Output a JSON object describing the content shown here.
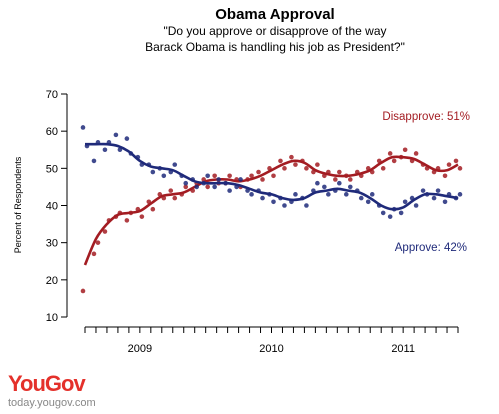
{
  "chart_data": {
    "type": "scatter",
    "title": "Obama Approval",
    "subtitle_lines": [
      "\"Do you approve or disapprove of the way",
      "Barack Obama is handling his job as President?\""
    ],
    "ylabel": "Percent of Respondents",
    "xlabel": "",
    "ylim": [
      10,
      70
    ],
    "yticks": [
      10,
      20,
      30,
      40,
      50,
      60,
      70
    ],
    "x_start": "2009-02",
    "x_end": "2011-12",
    "year_labels": [
      {
        "label": "2009",
        "center": "2009-07"
      },
      {
        "label": "2010",
        "center": "2010-07"
      },
      {
        "label": "2011",
        "center": "2011-07"
      }
    ],
    "grid": false,
    "series": [
      {
        "name": "Disapprove: 51%",
        "color": "#a31c22",
        "trend": [
          [
            "2009-02",
            24
          ],
          [
            "2009-03",
            31
          ],
          [
            "2009-04",
            35
          ],
          [
            "2009-05",
            37.5
          ],
          [
            "2009-06",
            38
          ],
          [
            "2009-07",
            38.5
          ],
          [
            "2009-08",
            40.5
          ],
          [
            "2009-09",
            42.5
          ],
          [
            "2009-10",
            43
          ],
          [
            "2009-11",
            43.5
          ],
          [
            "2009-12",
            45
          ],
          [
            "2010-01",
            46.5
          ],
          [
            "2010-02",
            47
          ],
          [
            "2010-03",
            47
          ],
          [
            "2010-04",
            46.5
          ],
          [
            "2010-05",
            47
          ],
          [
            "2010-06",
            48
          ],
          [
            "2010-07",
            49.5
          ],
          [
            "2010-08",
            51
          ],
          [
            "2010-09",
            52
          ],
          [
            "2010-10",
            51.5
          ],
          [
            "2010-11",
            49.5
          ],
          [
            "2010-12",
            48.5
          ],
          [
            "2011-01",
            48
          ],
          [
            "2011-02",
            48
          ],
          [
            "2011-03",
            48.5
          ],
          [
            "2011-04",
            49.5
          ],
          [
            "2011-05",
            51.5
          ],
          [
            "2011-06",
            53
          ],
          [
            "2011-07",
            53
          ],
          [
            "2011-08",
            52.5
          ],
          [
            "2011-09",
            51
          ],
          [
            "2011-10",
            49.5
          ],
          [
            "2011-11",
            49.5
          ],
          [
            "2011-12",
            51
          ]
        ],
        "points": [
          [
            "2009-02",
            17
          ],
          [
            "2009-03",
            27
          ],
          [
            "2009-03",
            30
          ],
          [
            "2009-04",
            33
          ],
          [
            "2009-04",
            36
          ],
          [
            "2009-05",
            37
          ],
          [
            "2009-05",
            38
          ],
          [
            "2009-06",
            36
          ],
          [
            "2009-06",
            38
          ],
          [
            "2009-07",
            39
          ],
          [
            "2009-07",
            37
          ],
          [
            "2009-08",
            41
          ],
          [
            "2009-08",
            39
          ],
          [
            "2009-09",
            43
          ],
          [
            "2009-09",
            42
          ],
          [
            "2009-10",
            44
          ],
          [
            "2009-10",
            42
          ],
          [
            "2009-11",
            43
          ],
          [
            "2009-11",
            45
          ],
          [
            "2009-12",
            44
          ],
          [
            "2009-12",
            46
          ],
          [
            "2010-01",
            47
          ],
          [
            "2010-01",
            45
          ],
          [
            "2010-02",
            48
          ],
          [
            "2010-02",
            46
          ],
          [
            "2010-03",
            46
          ],
          [
            "2010-03",
            48
          ],
          [
            "2010-04",
            47
          ],
          [
            "2010-04",
            45
          ],
          [
            "2010-05",
            47
          ],
          [
            "2010-05",
            48
          ],
          [
            "2010-06",
            49
          ],
          [
            "2010-06",
            47
          ],
          [
            "2010-07",
            50
          ],
          [
            "2010-07",
            48
          ],
          [
            "2010-08",
            52
          ],
          [
            "2010-08",
            50
          ],
          [
            "2010-09",
            53
          ],
          [
            "2010-09",
            51
          ],
          [
            "2010-10",
            52
          ],
          [
            "2010-10",
            50
          ],
          [
            "2010-11",
            49
          ],
          [
            "2010-11",
            51
          ],
          [
            "2010-12",
            48
          ],
          [
            "2010-12",
            49
          ],
          [
            "2011-01",
            47
          ],
          [
            "2011-01",
            49
          ],
          [
            "2011-02",
            48
          ],
          [
            "2011-02",
            47
          ],
          [
            "2011-03",
            49
          ],
          [
            "2011-03",
            48
          ],
          [
            "2011-04",
            50
          ],
          [
            "2011-04",
            49
          ],
          [
            "2011-05",
            52
          ],
          [
            "2011-05",
            50
          ],
          [
            "2011-06",
            54
          ],
          [
            "2011-06",
            52
          ],
          [
            "2011-07",
            53
          ],
          [
            "2011-07",
            55
          ],
          [
            "2011-08",
            52
          ],
          [
            "2011-08",
            54
          ],
          [
            "2011-09",
            51
          ],
          [
            "2011-09",
            50
          ],
          [
            "2011-10",
            49
          ],
          [
            "2011-10",
            50
          ],
          [
            "2011-11",
            48
          ],
          [
            "2011-11",
            51
          ],
          [
            "2011-12",
            52
          ],
          [
            "2011-12",
            50
          ]
        ]
      },
      {
        "name": "Approve: 42%",
        "color": "#1f2a7a",
        "trend": [
          [
            "2009-02",
            56.5
          ],
          [
            "2009-03",
            56.5
          ],
          [
            "2009-04",
            56.5
          ],
          [
            "2009-05",
            56
          ],
          [
            "2009-06",
            54.5
          ],
          [
            "2009-07",
            52
          ],
          [
            "2009-08",
            50.5
          ],
          [
            "2009-09",
            50
          ],
          [
            "2009-10",
            49.5
          ],
          [
            "2009-11",
            48
          ],
          [
            "2009-12",
            46.5
          ],
          [
            "2010-01",
            46
          ],
          [
            "2010-02",
            46
          ],
          [
            "2010-03",
            46
          ],
          [
            "2010-04",
            45.5
          ],
          [
            "2010-05",
            44.5
          ],
          [
            "2010-06",
            43.5
          ],
          [
            "2010-07",
            43
          ],
          [
            "2010-08",
            42
          ],
          [
            "2010-09",
            41.5
          ],
          [
            "2010-10",
            42
          ],
          [
            "2010-11",
            43.5
          ],
          [
            "2010-12",
            44
          ],
          [
            "2011-01",
            44.5
          ],
          [
            "2011-02",
            44
          ],
          [
            "2011-03",
            43.5
          ],
          [
            "2011-04",
            42
          ],
          [
            "2011-05",
            40
          ],
          [
            "2011-06",
            39
          ],
          [
            "2011-07",
            39.5
          ],
          [
            "2011-08",
            41.5
          ],
          [
            "2011-09",
            43
          ],
          [
            "2011-10",
            43
          ],
          [
            "2011-11",
            42.5
          ],
          [
            "2011-12",
            42
          ]
        ],
        "points": [
          [
            "2009-02",
            61
          ],
          [
            "2009-02",
            56
          ],
          [
            "2009-03",
            52
          ],
          [
            "2009-03",
            57
          ],
          [
            "2009-04",
            55
          ],
          [
            "2009-04",
            57
          ],
          [
            "2009-05",
            59
          ],
          [
            "2009-05",
            55
          ],
          [
            "2009-06",
            58
          ],
          [
            "2009-06",
            54
          ],
          [
            "2009-07",
            53
          ],
          [
            "2009-07",
            51
          ],
          [
            "2009-08",
            51
          ],
          [
            "2009-08",
            49
          ],
          [
            "2009-09",
            50
          ],
          [
            "2009-09",
            48
          ],
          [
            "2009-10",
            49
          ],
          [
            "2009-10",
            51
          ],
          [
            "2009-11",
            48
          ],
          [
            "2009-11",
            46
          ],
          [
            "2009-12",
            47
          ],
          [
            "2009-12",
            45
          ],
          [
            "2010-01",
            46
          ],
          [
            "2010-01",
            48
          ],
          [
            "2010-02",
            45
          ],
          [
            "2010-02",
            47
          ],
          [
            "2010-03",
            46
          ],
          [
            "2010-03",
            44
          ],
          [
            "2010-04",
            45
          ],
          [
            "2010-04",
            47
          ],
          [
            "2010-05",
            44
          ],
          [
            "2010-05",
            43
          ],
          [
            "2010-06",
            44
          ],
          [
            "2010-06",
            42
          ],
          [
            "2010-07",
            43
          ],
          [
            "2010-07",
            41
          ],
          [
            "2010-08",
            42
          ],
          [
            "2010-08",
            40
          ],
          [
            "2010-09",
            41
          ],
          [
            "2010-09",
            43
          ],
          [
            "2010-10",
            42
          ],
          [
            "2010-10",
            40
          ],
          [
            "2010-11",
            44
          ],
          [
            "2010-11",
            46
          ],
          [
            "2010-12",
            45
          ],
          [
            "2010-12",
            43
          ],
          [
            "2011-01",
            44
          ],
          [
            "2011-01",
            46
          ],
          [
            "2011-02",
            43
          ],
          [
            "2011-02",
            45
          ],
          [
            "2011-03",
            44
          ],
          [
            "2011-03",
            42
          ],
          [
            "2011-04",
            41
          ],
          [
            "2011-04",
            43
          ],
          [
            "2011-05",
            40
          ],
          [
            "2011-05",
            38
          ],
          [
            "2011-06",
            37
          ],
          [
            "2011-06",
            39
          ],
          [
            "2011-07",
            38
          ],
          [
            "2011-07",
            41
          ],
          [
            "2011-08",
            42
          ],
          [
            "2011-08",
            40
          ],
          [
            "2011-09",
            44
          ],
          [
            "2011-09",
            43
          ],
          [
            "2011-10",
            42
          ],
          [
            "2011-10",
            44
          ],
          [
            "2011-11",
            41
          ],
          [
            "2011-11",
            43
          ],
          [
            "2011-12",
            42
          ],
          [
            "2011-12",
            43
          ]
        ]
      }
    ]
  },
  "branding": {
    "logo_you": "You",
    "logo_gov": "Gov",
    "url": "today.yougov.com"
  }
}
